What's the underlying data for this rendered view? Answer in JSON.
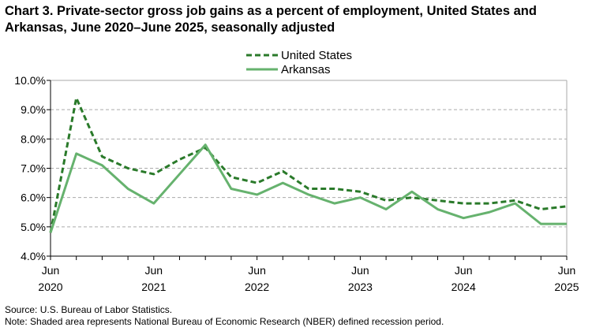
{
  "chart_data": {
    "type": "line",
    "title": "Chart 3. Private-sector gross job gains as a percent of employment, United States and Arkansas, June 2020–June 2025, seasonally adjusted",
    "x": [
      "Jun 2020",
      "Sep 2020",
      "Dec 2020",
      "Mar 2021",
      "Jun 2021",
      "Sep 2021",
      "Dec 2021",
      "Mar 2022",
      "Jun 2022",
      "Sep 2022",
      "Dec 2022",
      "Mar 2023",
      "Jun 2023",
      "Sep 2023",
      "Dec 2023",
      "Mar 2024",
      "Jun 2024",
      "Sep 2024",
      "Dec 2024",
      "Mar 2025",
      "Jun 2025"
    ],
    "x_tick_labels": [
      {
        "index": 0,
        "month": "Jun",
        "year": "2020"
      },
      {
        "index": 4,
        "month": "Jun",
        "year": "2021"
      },
      {
        "index": 8,
        "month": "Jun",
        "year": "2022"
      },
      {
        "index": 12,
        "month": "Jun",
        "year": "2023"
      },
      {
        "index": 16,
        "month": "Jun",
        "year": "2024"
      },
      {
        "index": 20,
        "month": "Jun",
        "year": "2025"
      }
    ],
    "y_tick_labels": [
      "4.0%",
      "5.0%",
      "6.0%",
      "7.0%",
      "8.0%",
      "9.0%",
      "10.0%"
    ],
    "ylim": [
      4,
      10
    ],
    "grid": "horizontal dashed",
    "legend_position": "top-center",
    "series": [
      {
        "name": "United States",
        "style": "dashed",
        "color": "#2a7a2a",
        "values": [
          4.8,
          9.4,
          7.4,
          7.0,
          6.8,
          7.3,
          7.7,
          6.7,
          6.5,
          6.9,
          6.3,
          6.3,
          6.2,
          5.9,
          6.0,
          5.9,
          5.8,
          5.8,
          5.9,
          5.6,
          5.7
        ]
      },
      {
        "name": "Arkansas",
        "style": "solid",
        "color": "#66b26e",
        "values": [
          4.8,
          7.5,
          7.1,
          6.3,
          5.8,
          6.8,
          7.8,
          6.3,
          6.1,
          6.5,
          6.1,
          5.8,
          6.0,
          5.6,
          6.2,
          5.6,
          5.3,
          5.5,
          5.8,
          5.1,
          5.1
        ]
      }
    ]
  },
  "source": "Source: U.S. Bureau of Labor Statistics.",
  "note": "Note: Shaded area represents National Bureau of Economic Research (NBER) defined recession period."
}
